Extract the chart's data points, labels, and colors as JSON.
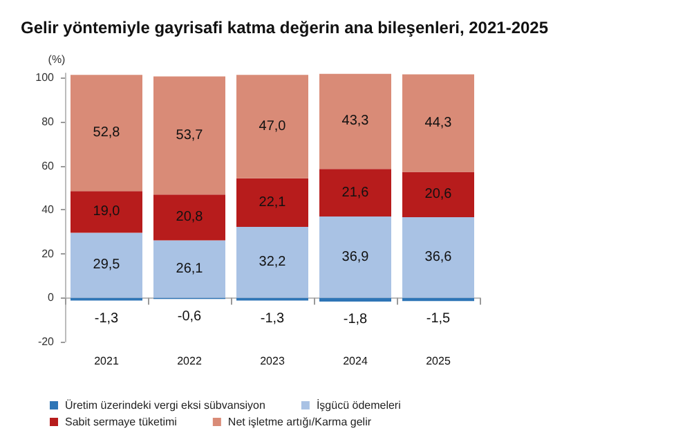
{
  "chart_data": {
    "type": "bar",
    "title": "Gelir yöntemiyle gayrisafi katma değerin ana bileşenleri, 2021-2025",
    "ylabel": "(%)",
    "categories": [
      "2021",
      "2022",
      "2023",
      "2024",
      "2025"
    ],
    "stacked": true,
    "ylim": [
      -20,
      102
    ],
    "yticks": [
      -20,
      0,
      20,
      40,
      60,
      80,
      100
    ],
    "legend": "bottom left",
    "series": [
      {
        "name": "Üretim üzerindeki vergi eksi sübvansiyon",
        "color": "#2e75b6",
        "values": [
          -1.3,
          -0.6,
          -1.3,
          -1.8,
          -1.5
        ],
        "value_labels": [
          "-1,3",
          "-0,6",
          "-1,3",
          "-1,8",
          "-1,5"
        ]
      },
      {
        "name": "İşgücü ödemeleri",
        "color": "#a9c2e4",
        "values": [
          29.5,
          26.1,
          32.2,
          36.9,
          36.6
        ],
        "value_labels": [
          "29,5",
          "26,1",
          "32,2",
          "36,9",
          "36,6"
        ]
      },
      {
        "name": "Sabit sermaye tüketimi",
        "color": "#b71c1c",
        "values": [
          19.0,
          20.8,
          22.1,
          21.6,
          20.6
        ],
        "value_labels": [
          "19,0",
          "20,8",
          "22,1",
          "21,6",
          "20,6"
        ]
      },
      {
        "name": "Net işletme artığı/Karma gelir",
        "color": "#d98b77",
        "values": [
          52.8,
          53.7,
          47.0,
          43.3,
          44.3
        ],
        "value_labels": [
          "52,8",
          "53,7",
          "47,0",
          "43,3",
          "44,3"
        ]
      }
    ]
  }
}
